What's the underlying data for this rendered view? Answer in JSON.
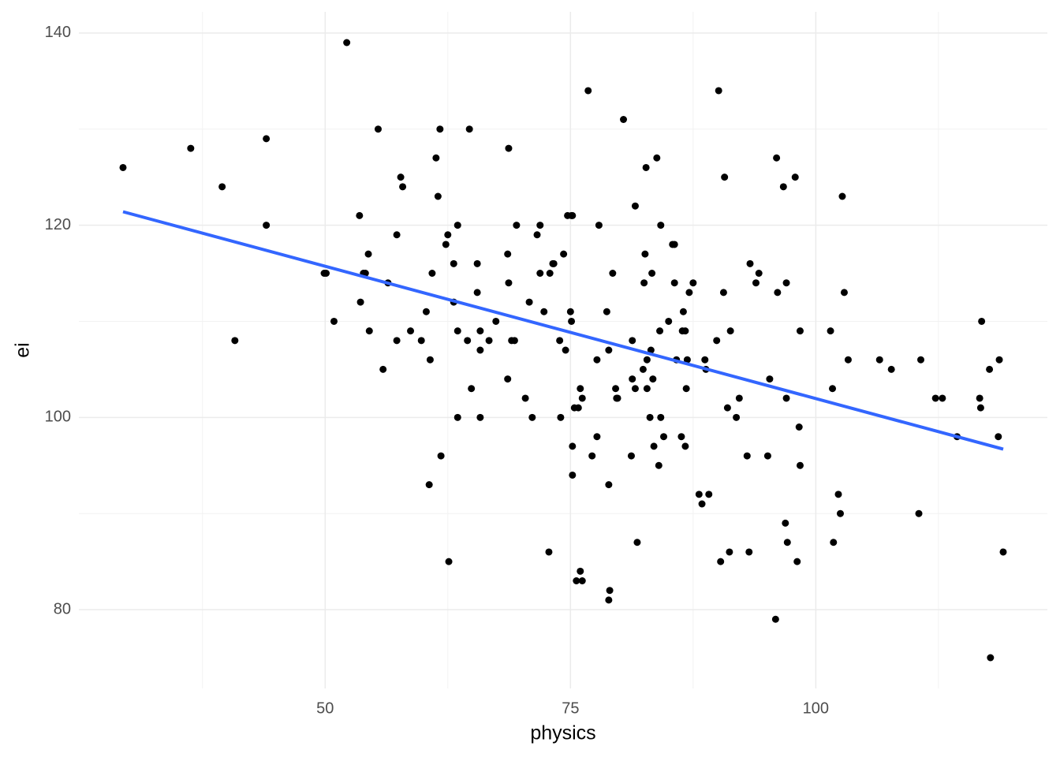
{
  "chart_data": {
    "type": "scatter",
    "x_label": "physics",
    "y_label": "ei",
    "xlim": [
      24.9,
      123.6
    ],
    "ylim": [
      71.8,
      142.2
    ],
    "xticks": [
      50,
      75,
      100
    ],
    "yticks": [
      80,
      100,
      120,
      140
    ],
    "xminor": [
      37.5,
      62.5,
      87.5,
      112.5
    ],
    "yminor": [
      90,
      110,
      130
    ],
    "grid": true,
    "color": "#000000",
    "x": [
      29.4,
      36.3,
      39.5,
      40.8,
      44.0,
      44.0,
      49.9,
      50.1,
      50.9,
      52.2,
      53.5,
      53.6,
      53.9,
      54.1,
      54.4,
      54.5,
      55.4,
      55.9,
      56.4,
      57.3,
      57.3,
      57.7,
      57.9,
      58.7,
      59.8,
      60.3,
      60.6,
      60.7,
      60.9,
      61.3,
      61.5,
      61.7,
      61.8,
      62.3,
      62.5,
      62.6,
      63.1,
      63.1,
      63.5,
      63.5,
      63.5,
      64.5,
      64.7,
      64.9,
      65.5,
      65.5,
      65.8,
      65.8,
      65.8,
      66.7,
      67.4,
      68.6,
      68.6,
      68.7,
      68.7,
      69.0,
      69.3,
      69.5,
      70.4,
      70.8,
      71.1,
      71.6,
      71.9,
      71.9,
      72.3,
      72.8,
      72.9,
      73.2,
      73.3,
      73.9,
      74.0,
      74.3,
      74.5,
      74.7,
      75.1,
      75.2,
      75.0,
      75.1,
      75.2,
      75.2,
      75.4,
      75.8,
      75.6,
      76.0,
      76.0,
      76.2,
      76.2,
      76.8,
      77.2,
      77.7,
      77.7,
      77.9,
      78.7,
      78.9,
      78.9,
      78.9,
      79.0,
      79.3,
      79.6,
      79.7,
      79.8,
      80.4,
      81.2,
      81.3,
      81.3,
      81.6,
      81.6,
      81.8,
      82.4,
      82.5,
      82.6,
      82.7,
      82.8,
      82.8,
      83.1,
      83.2,
      83.3,
      83.4,
      83.5,
      83.8,
      84.0,
      84.1,
      84.2,
      84.2,
      84.5,
      85.0,
      85.4,
      85.6,
      85.6,
      85.8,
      86.3,
      86.4,
      86.5,
      86.7,
      86.7,
      86.8,
      86.9,
      87.1,
      87.5,
      88.1,
      88.4,
      88.7,
      88.8,
      89.1,
      89.9,
      90.1,
      90.3,
      90.6,
      90.7,
      91.0,
      91.2,
      91.3,
      91.9,
      92.2,
      93.0,
      93.2,
      93.3,
      93.9,
      94.2,
      95.1,
      95.3,
      95.9,
      96.1,
      96.0,
      96.7,
      96.9,
      97.0,
      97.0,
      97.1,
      97.9,
      98.1,
      98.3,
      98.4,
      98.4,
      101.5,
      101.7,
      101.8,
      102.3,
      102.5,
      102.7,
      102.9,
      103.3,
      106.5,
      107.7,
      110.5,
      110.7,
      112.2,
      112.9,
      114.4,
      116.7,
      116.8,
      116.9,
      117.7,
      117.8,
      118.6,
      118.7,
      119.1
    ],
    "values": [
      126,
      128,
      124,
      108,
      129,
      120,
      115,
      115,
      110,
      139,
      121,
      112,
      115,
      115,
      117,
      109,
      130,
      105,
      114,
      108,
      119,
      125,
      124,
      109,
      108,
      111,
      93,
      106,
      115,
      127,
      123,
      130,
      96,
      118,
      119,
      85,
      116,
      112,
      120,
      100,
      109,
      108,
      130,
      103,
      116,
      113,
      100,
      109,
      107,
      108,
      110,
      104,
      117,
      114,
      128,
      108,
      108,
      120,
      102,
      112,
      100,
      119,
      120,
      115,
      111,
      86,
      115,
      116,
      116,
      108,
      100,
      117,
      107,
      121,
      121,
      121,
      111,
      110,
      94,
      97,
      101,
      101,
      83,
      84,
      103,
      102,
      83,
      134,
      96,
      98,
      106,
      120,
      111,
      93,
      107,
      81,
      82,
      115,
      103,
      102,
      102,
      131,
      96,
      104,
      108,
      122,
      103,
      87,
      105,
      114,
      117,
      126,
      106,
      103,
      100,
      107,
      115,
      104,
      97,
      127,
      95,
      109,
      120,
      100,
      98,
      110,
      118,
      118,
      114,
      106,
      98,
      109,
      111,
      97,
      109,
      103,
      106,
      113,
      114,
      92,
      91,
      106,
      105,
      92,
      108,
      134,
      85,
      113,
      125,
      101,
      86,
      109,
      100,
      102,
      96,
      86,
      116,
      114,
      115,
      96,
      104,
      79,
      113,
      127,
      124,
      89,
      102,
      114,
      87,
      125,
      85,
      99,
      95,
      109,
      109,
      103,
      87,
      92,
      90,
      123,
      113,
      106,
      106,
      105,
      90,
      106,
      102,
      102,
      98,
      102,
      101,
      110,
      105,
      75,
      98,
      106,
      86
    ],
    "fit": {
      "color": "#3366ff",
      "x": [
        29.4,
        119.1
      ],
      "values": [
        121.4,
        96.7
      ]
    }
  }
}
